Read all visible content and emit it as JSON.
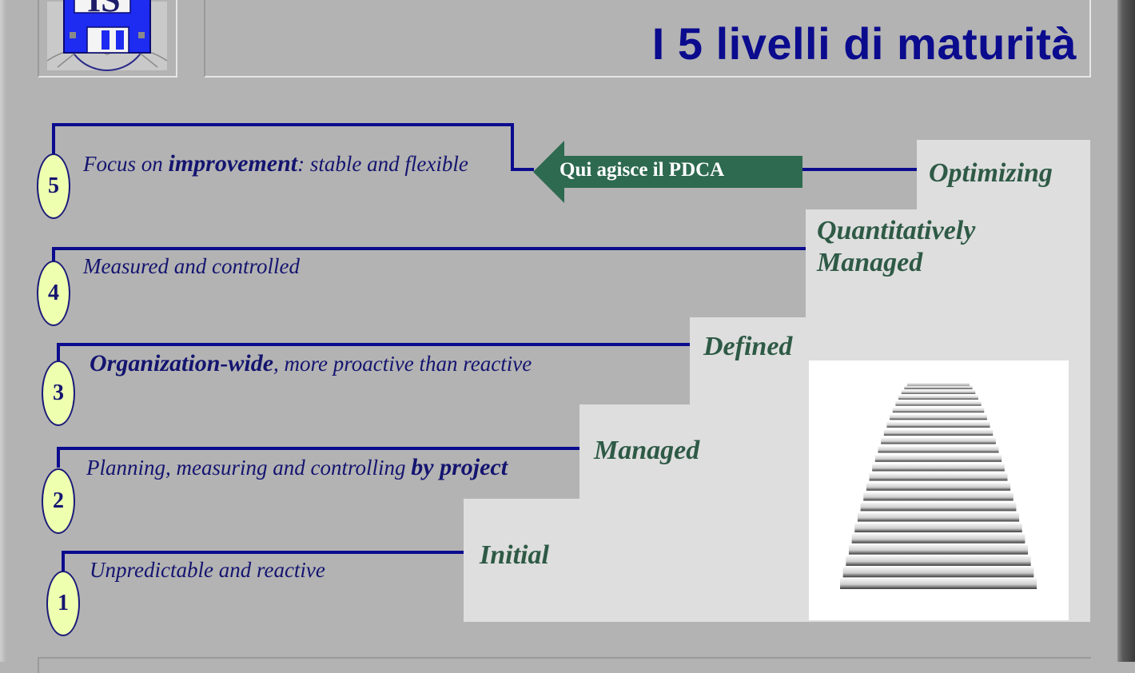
{
  "header": {
    "logo_text": "IS",
    "title": "I 5 livelli di maturità"
  },
  "colors": {
    "background": "#b3b3b3",
    "title": "#0b0b8e",
    "line": "#0b0b8e",
    "step_fill": "#dedede",
    "step_label": "#2e5a46",
    "badge_fill": "#eeffb0",
    "arrow_fill": "#2e6a50"
  },
  "steps": [
    {
      "name": "Initial"
    },
    {
      "name": "Managed"
    },
    {
      "name": "Defined"
    },
    {
      "name": "Quantitatively",
      "name2": "Managed"
    },
    {
      "name": "Optimizing"
    }
  ],
  "levels": [
    {
      "number": "1",
      "text": "Unpredictable and reactive"
    },
    {
      "number": "2",
      "text_before": "Planning, measuring and controlling ",
      "text_bold": "by project"
    },
    {
      "number": "3",
      "text_bold": "Organization-wide",
      "text_after": ", more proactive than reactive"
    },
    {
      "number": "4",
      "text": "Measured and controlled"
    },
    {
      "number": "5",
      "text_before": "Focus on ",
      "text_bold": "improvement",
      "text_after": ": stable and flexible"
    }
  ],
  "pdca": {
    "label": "Qui agisce il PDCA"
  },
  "icons": {
    "logo": "floppy-disk-vitruvian-logo-icon",
    "stairs": "stairs-image-icon"
  }
}
